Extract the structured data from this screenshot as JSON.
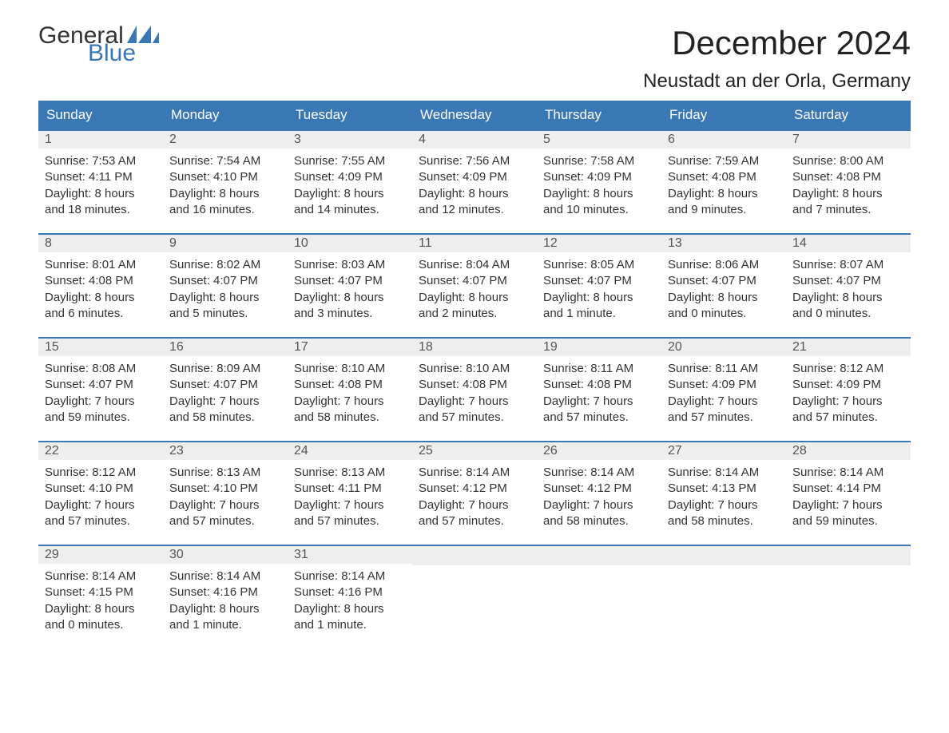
{
  "brand": {
    "text_general": "General",
    "text_blue": "Blue",
    "flag_color": "#3a78b5"
  },
  "title": {
    "month_year": "December 2024",
    "location": "Neustadt an der Orla, Germany"
  },
  "colors": {
    "header_bg": "#3a78b5",
    "header_text": "#ffffff",
    "daynum_bg": "#eeeeee",
    "week_border": "#3a78b5",
    "body_text": "#333333",
    "brand_blue": "#3a78b5"
  },
  "calendar": {
    "day_headers": [
      "Sunday",
      "Monday",
      "Tuesday",
      "Wednesday",
      "Thursday",
      "Friday",
      "Saturday"
    ],
    "labels": {
      "sunrise": "Sunrise:",
      "sunset": "Sunset:",
      "daylight": "Daylight:"
    },
    "weeks": [
      [
        {
          "day": "1",
          "sunrise": "7:53 AM",
          "sunset": "4:11 PM",
          "daylight1": "Daylight: 8 hours",
          "daylight2": "and 18 minutes."
        },
        {
          "day": "2",
          "sunrise": "7:54 AM",
          "sunset": "4:10 PM",
          "daylight1": "Daylight: 8 hours",
          "daylight2": "and 16 minutes."
        },
        {
          "day": "3",
          "sunrise": "7:55 AM",
          "sunset": "4:09 PM",
          "daylight1": "Daylight: 8 hours",
          "daylight2": "and 14 minutes."
        },
        {
          "day": "4",
          "sunrise": "7:56 AM",
          "sunset": "4:09 PM",
          "daylight1": "Daylight: 8 hours",
          "daylight2": "and 12 minutes."
        },
        {
          "day": "5",
          "sunrise": "7:58 AM",
          "sunset": "4:09 PM",
          "daylight1": "Daylight: 8 hours",
          "daylight2": "and 10 minutes."
        },
        {
          "day": "6",
          "sunrise": "7:59 AM",
          "sunset": "4:08 PM",
          "daylight1": "Daylight: 8 hours",
          "daylight2": "and 9 minutes."
        },
        {
          "day": "7",
          "sunrise": "8:00 AM",
          "sunset": "4:08 PM",
          "daylight1": "Daylight: 8 hours",
          "daylight2": "and 7 minutes."
        }
      ],
      [
        {
          "day": "8",
          "sunrise": "8:01 AM",
          "sunset": "4:08 PM",
          "daylight1": "Daylight: 8 hours",
          "daylight2": "and 6 minutes."
        },
        {
          "day": "9",
          "sunrise": "8:02 AM",
          "sunset": "4:07 PM",
          "daylight1": "Daylight: 8 hours",
          "daylight2": "and 5 minutes."
        },
        {
          "day": "10",
          "sunrise": "8:03 AM",
          "sunset": "4:07 PM",
          "daylight1": "Daylight: 8 hours",
          "daylight2": "and 3 minutes."
        },
        {
          "day": "11",
          "sunrise": "8:04 AM",
          "sunset": "4:07 PM",
          "daylight1": "Daylight: 8 hours",
          "daylight2": "and 2 minutes."
        },
        {
          "day": "12",
          "sunrise": "8:05 AM",
          "sunset": "4:07 PM",
          "daylight1": "Daylight: 8 hours",
          "daylight2": "and 1 minute."
        },
        {
          "day": "13",
          "sunrise": "8:06 AM",
          "sunset": "4:07 PM",
          "daylight1": "Daylight: 8 hours",
          "daylight2": "and 0 minutes."
        },
        {
          "day": "14",
          "sunrise": "8:07 AM",
          "sunset": "4:07 PM",
          "daylight1": "Daylight: 8 hours",
          "daylight2": "and 0 minutes."
        }
      ],
      [
        {
          "day": "15",
          "sunrise": "8:08 AM",
          "sunset": "4:07 PM",
          "daylight1": "Daylight: 7 hours",
          "daylight2": "and 59 minutes."
        },
        {
          "day": "16",
          "sunrise": "8:09 AM",
          "sunset": "4:07 PM",
          "daylight1": "Daylight: 7 hours",
          "daylight2": "and 58 minutes."
        },
        {
          "day": "17",
          "sunrise": "8:10 AM",
          "sunset": "4:08 PM",
          "daylight1": "Daylight: 7 hours",
          "daylight2": "and 58 minutes."
        },
        {
          "day": "18",
          "sunrise": "8:10 AM",
          "sunset": "4:08 PM",
          "daylight1": "Daylight: 7 hours",
          "daylight2": "and 57 minutes."
        },
        {
          "day": "19",
          "sunrise": "8:11 AM",
          "sunset": "4:08 PM",
          "daylight1": "Daylight: 7 hours",
          "daylight2": "and 57 minutes."
        },
        {
          "day": "20",
          "sunrise": "8:11 AM",
          "sunset": "4:09 PM",
          "daylight1": "Daylight: 7 hours",
          "daylight2": "and 57 minutes."
        },
        {
          "day": "21",
          "sunrise": "8:12 AM",
          "sunset": "4:09 PM",
          "daylight1": "Daylight: 7 hours",
          "daylight2": "and 57 minutes."
        }
      ],
      [
        {
          "day": "22",
          "sunrise": "8:12 AM",
          "sunset": "4:10 PM",
          "daylight1": "Daylight: 7 hours",
          "daylight2": "and 57 minutes."
        },
        {
          "day": "23",
          "sunrise": "8:13 AM",
          "sunset": "4:10 PM",
          "daylight1": "Daylight: 7 hours",
          "daylight2": "and 57 minutes."
        },
        {
          "day": "24",
          "sunrise": "8:13 AM",
          "sunset": "4:11 PM",
          "daylight1": "Daylight: 7 hours",
          "daylight2": "and 57 minutes."
        },
        {
          "day": "25",
          "sunrise": "8:14 AM",
          "sunset": "4:12 PM",
          "daylight1": "Daylight: 7 hours",
          "daylight2": "and 57 minutes."
        },
        {
          "day": "26",
          "sunrise": "8:14 AM",
          "sunset": "4:12 PM",
          "daylight1": "Daylight: 7 hours",
          "daylight2": "and 58 minutes."
        },
        {
          "day": "27",
          "sunrise": "8:14 AM",
          "sunset": "4:13 PM",
          "daylight1": "Daylight: 7 hours",
          "daylight2": "and 58 minutes."
        },
        {
          "day": "28",
          "sunrise": "8:14 AM",
          "sunset": "4:14 PM",
          "daylight1": "Daylight: 7 hours",
          "daylight2": "and 59 minutes."
        }
      ],
      [
        {
          "day": "29",
          "sunrise": "8:14 AM",
          "sunset": "4:15 PM",
          "daylight1": "Daylight: 8 hours",
          "daylight2": "and 0 minutes."
        },
        {
          "day": "30",
          "sunrise": "8:14 AM",
          "sunset": "4:16 PM",
          "daylight1": "Daylight: 8 hours",
          "daylight2": "and 1 minute."
        },
        {
          "day": "31",
          "sunrise": "8:14 AM",
          "sunset": "4:16 PM",
          "daylight1": "Daylight: 8 hours",
          "daylight2": "and 1 minute."
        },
        null,
        null,
        null,
        null
      ]
    ]
  }
}
